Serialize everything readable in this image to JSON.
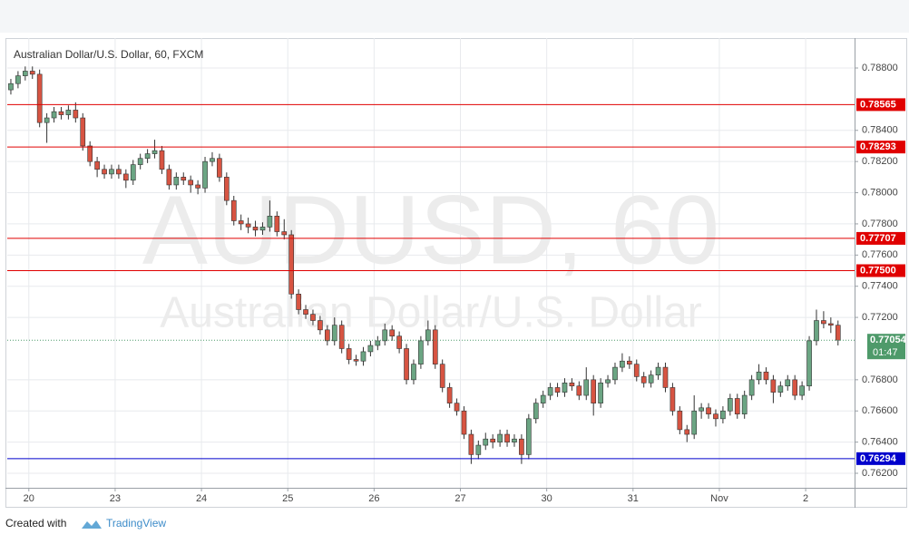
{
  "chart_data": {
    "type": "candlestick",
    "title": "Australian Dollar/U.S. Dollar, 60, FXCM",
    "watermark": "AUDUSD, 60",
    "watermark_subtitle": "Australian Dollar/U.S. Dollar",
    "up_color": "#6ba583",
    "down_color": "#d75442",
    "grid": true,
    "xlim": [
      0,
      117.8
    ],
    "xticks": [
      {
        "value": 3,
        "label": "20"
      },
      {
        "value": 15,
        "label": "23"
      },
      {
        "value": 27,
        "label": "24"
      },
      {
        "value": 39,
        "label": "25"
      },
      {
        "value": 51,
        "label": "26"
      },
      {
        "value": 63,
        "label": "27"
      },
      {
        "value": 75,
        "label": "30"
      },
      {
        "value": 87,
        "label": "31"
      },
      {
        "value": 99,
        "label": "Nov"
      },
      {
        "value": 111,
        "label": "2"
      }
    ],
    "ylim": [
      0.76107,
      0.78992
    ],
    "yticks": [
      {
        "value": 0.788,
        "label": "0.78800"
      },
      {
        "value": 0.784,
        "label": "0.78400"
      },
      {
        "value": 0.782,
        "label": "0.78200"
      },
      {
        "value": 0.78,
        "label": "0.78000"
      },
      {
        "value": 0.778,
        "label": "0.77800"
      },
      {
        "value": 0.776,
        "label": "0.77600"
      },
      {
        "value": 0.774,
        "label": "0.77400"
      },
      {
        "value": 0.772,
        "label": "0.77200"
      },
      {
        "value": 0.768,
        "label": "0.76800"
      },
      {
        "value": 0.766,
        "label": "0.76600"
      },
      {
        "value": 0.764,
        "label": "0.76400"
      },
      {
        "value": 0.762,
        "label": "0.76200"
      }
    ],
    "levels": [
      {
        "value": 0.78565,
        "label": "0.78565",
        "color": "#e00000"
      },
      {
        "value": 0.78293,
        "label": "0.78293",
        "color": "#e00000"
      },
      {
        "value": 0.77707,
        "label": "0.77707",
        "color": "#e00000"
      },
      {
        "value": 0.775,
        "label": "0.77500",
        "color": "#e00000"
      },
      {
        "value": 0.76294,
        "label": "0.76294",
        "color": "#0000cc"
      }
    ],
    "last_price": 0.77054,
    "countdown": "01:47",
    "last_color": "#4e9a6a",
    "candles": [
      [
        0.7866,
        0.7873,
        0.7863,
        0.787
      ],
      [
        0.787,
        0.7878,
        0.7867,
        0.7875
      ],
      [
        0.7875,
        0.7881,
        0.7872,
        0.7878
      ],
      [
        0.7878,
        0.7881,
        0.7873,
        0.7876
      ],
      [
        0.7876,
        0.7879,
        0.7842,
        0.7845
      ],
      [
        0.7845,
        0.7851,
        0.7832,
        0.7848
      ],
      [
        0.7848,
        0.7855,
        0.7845,
        0.7852
      ],
      [
        0.7852,
        0.7855,
        0.7847,
        0.785
      ],
      [
        0.785,
        0.7856,
        0.7847,
        0.7853
      ],
      [
        0.7853,
        0.7858,
        0.7845,
        0.7848
      ],
      [
        0.7848,
        0.7851,
        0.7827,
        0.783
      ],
      [
        0.783,
        0.7833,
        0.7817,
        0.782
      ],
      [
        0.782,
        0.7823,
        0.781,
        0.7815
      ],
      [
        0.7815,
        0.7818,
        0.7809,
        0.7812
      ],
      [
        0.7812,
        0.7818,
        0.7809,
        0.7815
      ],
      [
        0.7815,
        0.7818,
        0.7809,
        0.7812
      ],
      [
        0.7812,
        0.7815,
        0.7803,
        0.7808
      ],
      [
        0.7808,
        0.7821,
        0.7805,
        0.7818
      ],
      [
        0.7818,
        0.7825,
        0.7815,
        0.7822
      ],
      [
        0.7822,
        0.7828,
        0.7819,
        0.7825
      ],
      [
        0.7825,
        0.7834,
        0.7822,
        0.7827
      ],
      [
        0.7827,
        0.783,
        0.7812,
        0.7815
      ],
      [
        0.7815,
        0.7818,
        0.7802,
        0.7805
      ],
      [
        0.7805,
        0.7813,
        0.7802,
        0.781
      ],
      [
        0.781,
        0.7813,
        0.7805,
        0.7808
      ],
      [
        0.7808,
        0.7811,
        0.78,
        0.7805
      ],
      [
        0.7805,
        0.7808,
        0.7799,
        0.7803
      ],
      [
        0.7803,
        0.7823,
        0.78,
        0.782
      ],
      [
        0.782,
        0.7826,
        0.7817,
        0.7822
      ],
      [
        0.7822,
        0.7825,
        0.7807,
        0.781
      ],
      [
        0.781,
        0.7813,
        0.7792,
        0.7795
      ],
      [
        0.7795,
        0.7798,
        0.7779,
        0.7782
      ],
      [
        0.7782,
        0.7786,
        0.7776,
        0.778
      ],
      [
        0.778,
        0.7784,
        0.7774,
        0.7778
      ],
      [
        0.7778,
        0.7782,
        0.7772,
        0.7776
      ],
      [
        0.7776,
        0.7781,
        0.7773,
        0.7778
      ],
      [
        0.7778,
        0.7795,
        0.7775,
        0.7785
      ],
      [
        0.7785,
        0.7788,
        0.7772,
        0.7775
      ],
      [
        0.7775,
        0.7783,
        0.777,
        0.7773
      ],
      [
        0.7773,
        0.7776,
        0.7732,
        0.7735
      ],
      [
        0.7735,
        0.7738,
        0.7722,
        0.7725
      ],
      [
        0.7725,
        0.7728,
        0.7719,
        0.7722
      ],
      [
        0.7722,
        0.7725,
        0.7715,
        0.7718
      ],
      [
        0.7718,
        0.7721,
        0.7709,
        0.7712
      ],
      [
        0.7712,
        0.7715,
        0.7702,
        0.7705
      ],
      [
        0.7705,
        0.772,
        0.7702,
        0.7715
      ],
      [
        0.7715,
        0.7718,
        0.7697,
        0.77
      ],
      [
        0.77,
        0.7703,
        0.769,
        0.7693
      ],
      [
        0.7693,
        0.7696,
        0.7689,
        0.7692
      ],
      [
        0.7692,
        0.7701,
        0.7689,
        0.7698
      ],
      [
        0.7698,
        0.7705,
        0.7695,
        0.7702
      ],
      [
        0.7702,
        0.7708,
        0.7699,
        0.7705
      ],
      [
        0.7705,
        0.7716,
        0.7702,
        0.7712
      ],
      [
        0.7712,
        0.7715,
        0.7705,
        0.7708
      ],
      [
        0.7708,
        0.7711,
        0.7697,
        0.77
      ],
      [
        0.77,
        0.7703,
        0.7677,
        0.768
      ],
      [
        0.768,
        0.7693,
        0.7677,
        0.769
      ],
      [
        0.769,
        0.7708,
        0.7687,
        0.7705
      ],
      [
        0.7705,
        0.7718,
        0.7702,
        0.7712
      ],
      [
        0.7712,
        0.7715,
        0.7687,
        0.769
      ],
      [
        0.769,
        0.7693,
        0.7672,
        0.7675
      ],
      [
        0.7675,
        0.7678,
        0.7662,
        0.7665
      ],
      [
        0.7665,
        0.7668,
        0.7657,
        0.766
      ],
      [
        0.766,
        0.7663,
        0.7642,
        0.7645
      ],
      [
        0.7645,
        0.7648,
        0.7626,
        0.7632
      ],
      [
        0.7632,
        0.7641,
        0.7629,
        0.7638
      ],
      [
        0.7638,
        0.7646,
        0.7635,
        0.7642
      ],
      [
        0.7642,
        0.7645,
        0.7636,
        0.764
      ],
      [
        0.764,
        0.7648,
        0.7637,
        0.7645
      ],
      [
        0.7645,
        0.7648,
        0.7637,
        0.764
      ],
      [
        0.764,
        0.7645,
        0.7637,
        0.7642
      ],
      [
        0.7642,
        0.7645,
        0.7626,
        0.7632
      ],
      [
        0.7632,
        0.7658,
        0.7629,
        0.7655
      ],
      [
        0.7655,
        0.7668,
        0.7652,
        0.7665
      ],
      [
        0.7665,
        0.7673,
        0.7662,
        0.767
      ],
      [
        0.767,
        0.7678,
        0.7667,
        0.7675
      ],
      [
        0.7675,
        0.7678,
        0.7669,
        0.7672
      ],
      [
        0.7672,
        0.7681,
        0.7669,
        0.7678
      ],
      [
        0.7678,
        0.7681,
        0.7673,
        0.7676
      ],
      [
        0.7676,
        0.7679,
        0.7667,
        0.767
      ],
      [
        0.767,
        0.7688,
        0.7667,
        0.768
      ],
      [
        0.768,
        0.7683,
        0.7657,
        0.7665
      ],
      [
        0.7665,
        0.7681,
        0.7662,
        0.7678
      ],
      [
        0.7678,
        0.7683,
        0.7675,
        0.768
      ],
      [
        0.768,
        0.7691,
        0.7677,
        0.7688
      ],
      [
        0.7688,
        0.7697,
        0.7685,
        0.7692
      ],
      [
        0.7692,
        0.7695,
        0.7687,
        0.769
      ],
      [
        0.769,
        0.7693,
        0.7679,
        0.7682
      ],
      [
        0.7682,
        0.7685,
        0.7675,
        0.7678
      ],
      [
        0.7678,
        0.7686,
        0.7675,
        0.7683
      ],
      [
        0.7683,
        0.7691,
        0.768,
        0.7688
      ],
      [
        0.7688,
        0.7691,
        0.7672,
        0.7675
      ],
      [
        0.7675,
        0.7678,
        0.7657,
        0.766
      ],
      [
        0.766,
        0.7663,
        0.7645,
        0.7648
      ],
      [
        0.7648,
        0.7651,
        0.764,
        0.7645
      ],
      [
        0.7645,
        0.767,
        0.7642,
        0.766
      ],
      [
        0.766,
        0.7665,
        0.7655,
        0.7662
      ],
      [
        0.7662,
        0.7665,
        0.7655,
        0.7658
      ],
      [
        0.7658,
        0.7661,
        0.765,
        0.7655
      ],
      [
        0.7655,
        0.7663,
        0.7652,
        0.766
      ],
      [
        0.766,
        0.7671,
        0.7657,
        0.7668
      ],
      [
        0.7668,
        0.7671,
        0.7655,
        0.7658
      ],
      [
        0.7658,
        0.7673,
        0.7655,
        0.767
      ],
      [
        0.767,
        0.7683,
        0.7667,
        0.768
      ],
      [
        0.768,
        0.769,
        0.7677,
        0.7685
      ],
      [
        0.7685,
        0.7688,
        0.7677,
        0.768
      ],
      [
        0.768,
        0.7683,
        0.7665,
        0.7672
      ],
      [
        0.7672,
        0.7679,
        0.7669,
        0.7676
      ],
      [
        0.7676,
        0.7683,
        0.7673,
        0.768
      ],
      [
        0.768,
        0.7683,
        0.7667,
        0.767
      ],
      [
        0.767,
        0.7679,
        0.7667,
        0.7676
      ],
      [
        0.7676,
        0.7708,
        0.7673,
        0.7705
      ],
      [
        0.7705,
        0.7725,
        0.7702,
        0.7718
      ],
      [
        0.7718,
        0.7724,
        0.7713,
        0.7716
      ],
      [
        0.7716,
        0.772,
        0.771,
        0.7715
      ],
      [
        0.7715,
        0.7718,
        0.7702,
        0.77054
      ]
    ]
  },
  "footer": {
    "created_with": "Created with",
    "brand": "TradingView"
  }
}
